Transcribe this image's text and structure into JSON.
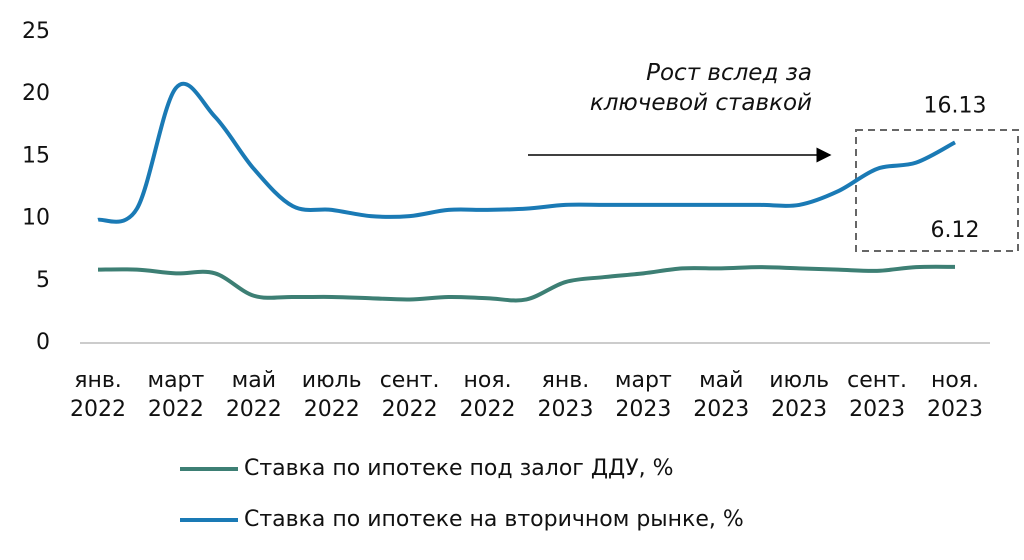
{
  "chart_data": {
    "type": "line",
    "categories": [
      "янв. 2022",
      null,
      "март 2022",
      null,
      "май 2022",
      null,
      "июль 2022",
      null,
      "сент. 2022",
      null,
      "ноя. 2022",
      null,
      "янв. 2023",
      null,
      "март 2023",
      null,
      "май 2023",
      null,
      "июль 2023",
      null,
      "сент. 2023",
      null,
      "ноя. 2023"
    ],
    "series": [
      {
        "name": "Ставка по ипотеке под залог ДДУ, %",
        "color": "#3d7f74",
        "values": [
          5.9,
          5.9,
          5.6,
          5.6,
          3.8,
          3.7,
          3.7,
          3.6,
          3.5,
          3.7,
          3.6,
          3.5,
          4.9,
          5.3,
          5.6,
          6.0,
          6.0,
          6.1,
          6.0,
          5.9,
          5.8,
          6.1,
          6.12
        ]
      },
      {
        "name": "Ставка по ипотеке на вторичном рынке, %",
        "color": "#1a7ab5",
        "values": [
          9.9,
          10.8,
          20.5,
          18.2,
          14.0,
          11.0,
          10.7,
          10.2,
          10.2,
          10.7,
          10.7,
          10.8,
          11.1,
          11.1,
          11.1,
          11.1,
          11.1,
          11.1,
          11.1,
          12.2,
          14.0,
          14.5,
          16.13
        ]
      }
    ],
    "annotation": "Рост вслед за ключевой ставкой",
    "ylim": [
      0,
      25
    ],
    "yticks": [
      0,
      5,
      10,
      15,
      20,
      25
    ],
    "grid": false
  }
}
